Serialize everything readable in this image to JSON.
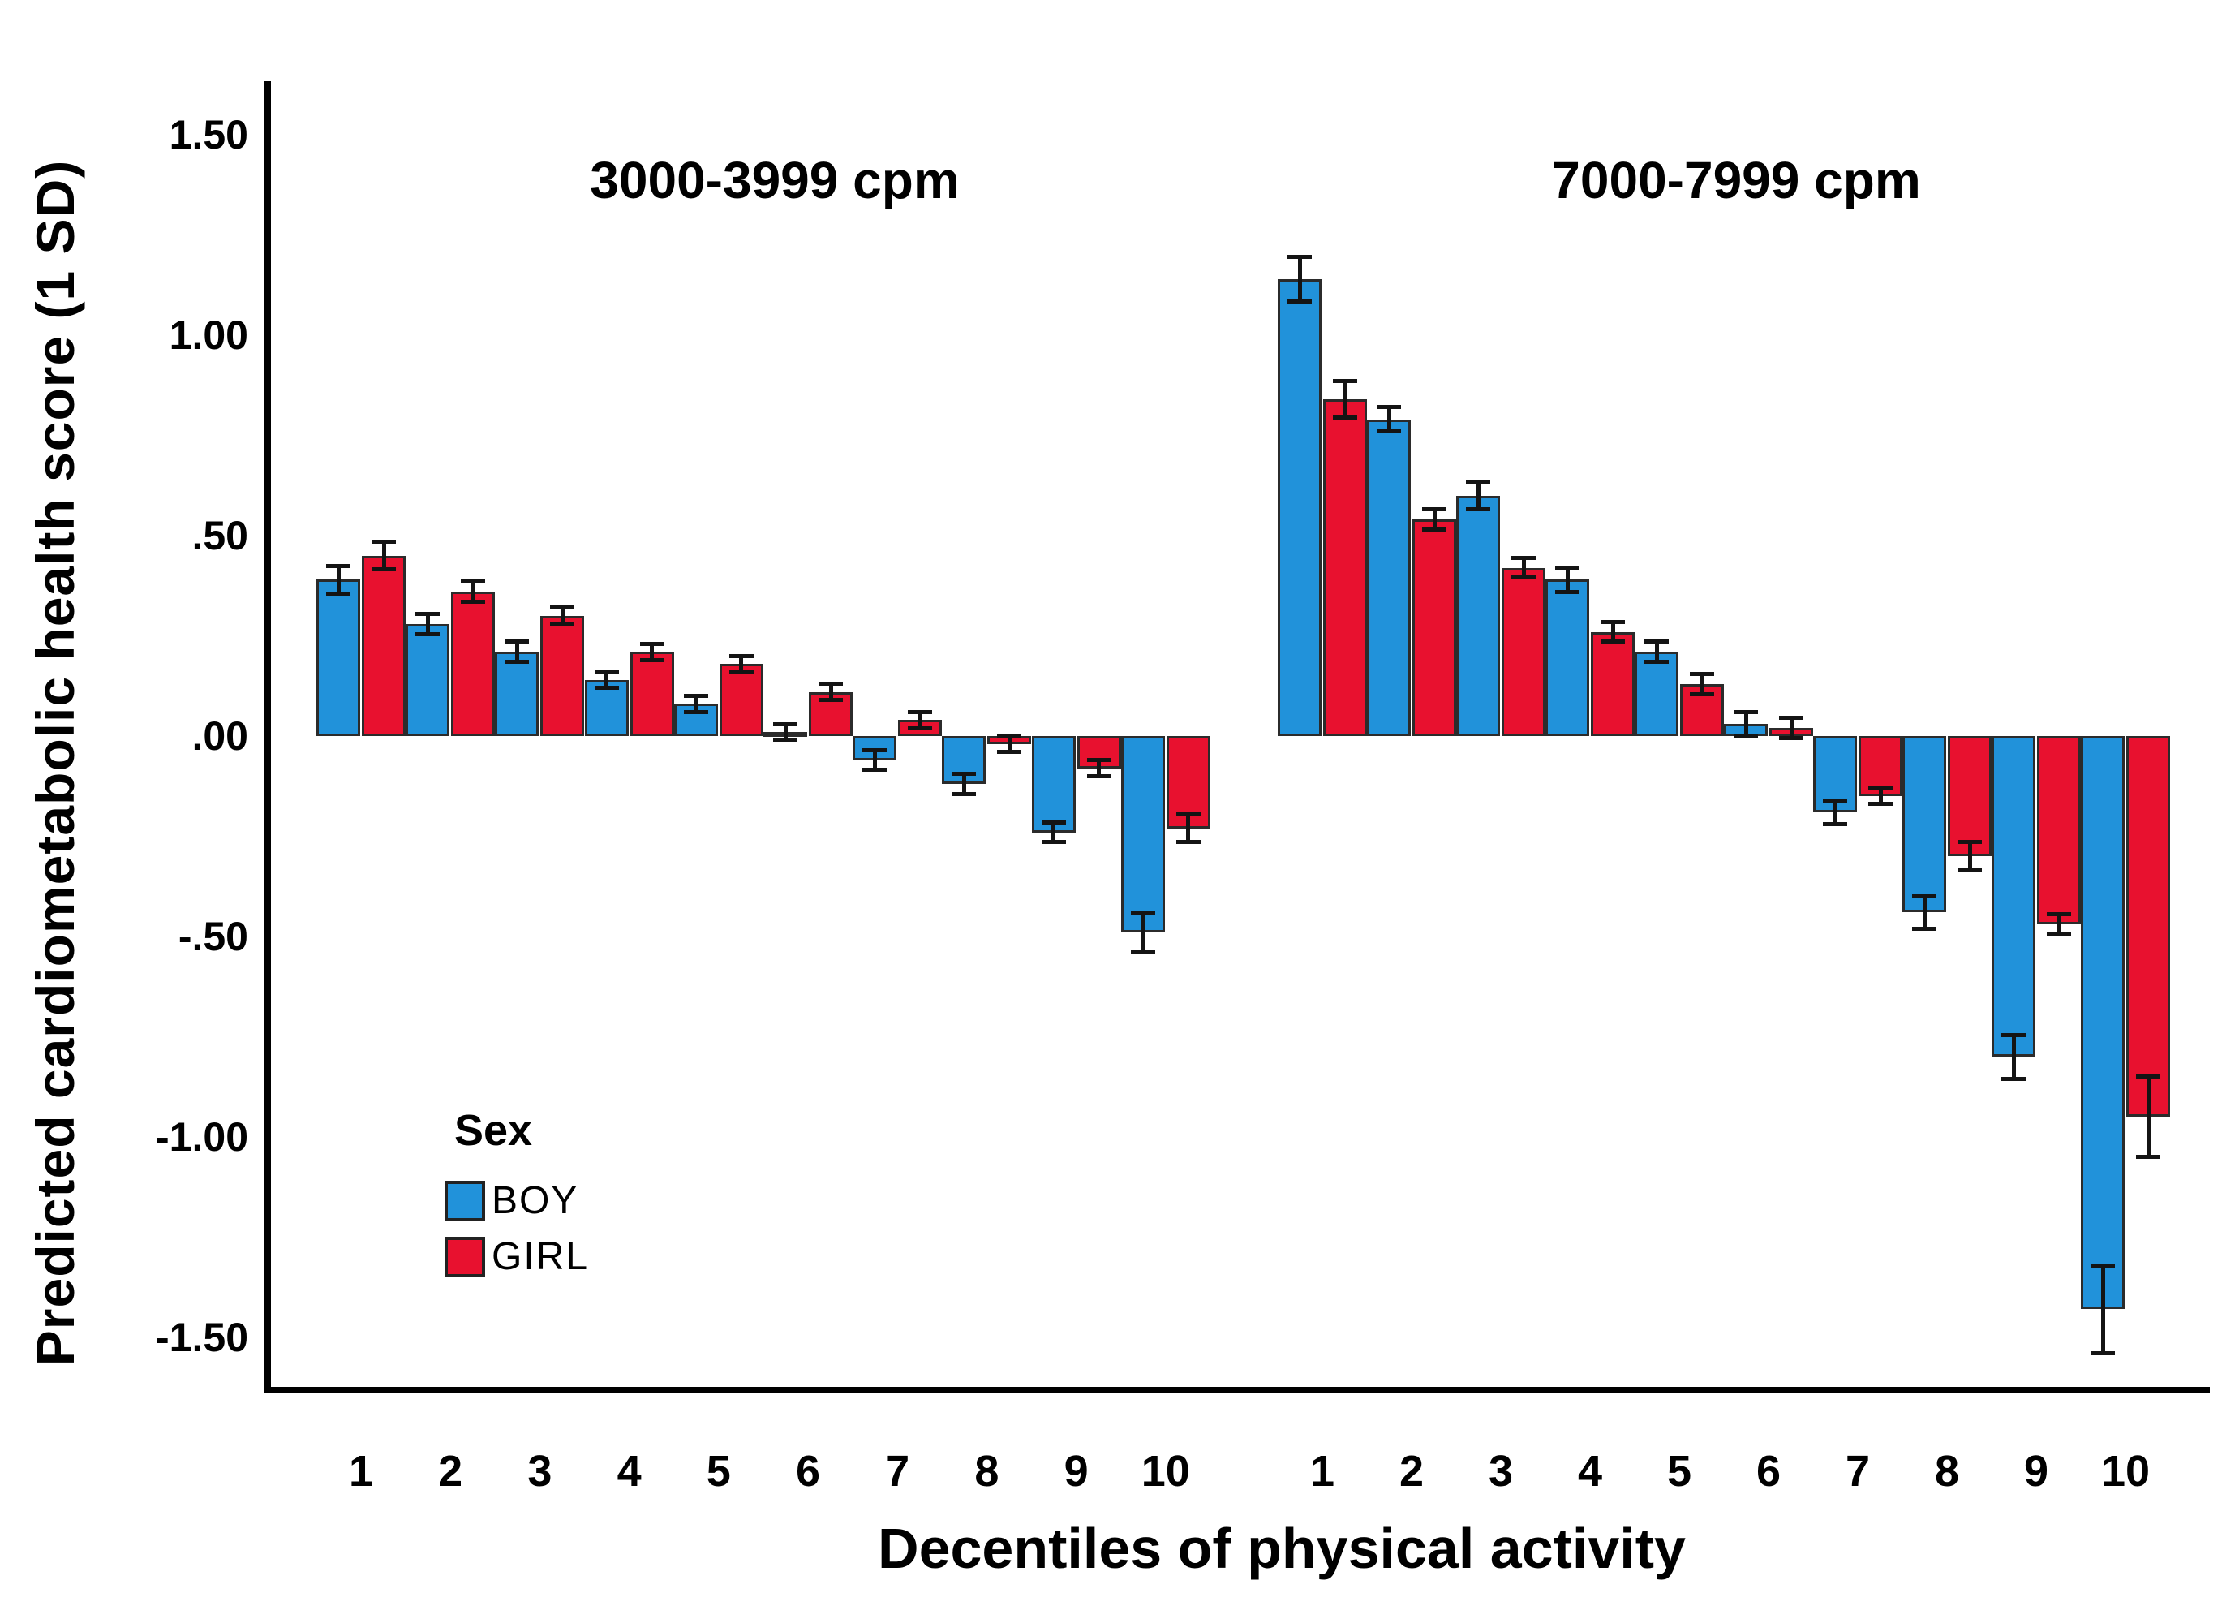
{
  "figure": {
    "y_axis": {
      "title": "Predicted cardiometabolic health score (1 SD)",
      "tick_labels": [
        "1.50",
        "1.00",
        ".50",
        ".00",
        "-.50",
        "-1.00",
        "-1.50"
      ],
      "tick_values": [
        1.5,
        1.0,
        0.5,
        0.0,
        -0.5,
        -1.0,
        -1.5
      ]
    },
    "x_axis": {
      "title": "Decentiles of physical activity"
    },
    "legend": {
      "title": "Sex",
      "items": [
        {
          "label": "BOY",
          "color": "#2192DA"
        },
        {
          "label": "GIRL",
          "color": "#E8112F"
        }
      ]
    }
  },
  "chart_data": {
    "type": "bar",
    "title": "",
    "xlabel": "Decentiles of physical activity",
    "ylabel": "Predicted cardiometabolic health score (1 SD)",
    "ylim": [
      -1.63,
      1.62
    ],
    "grid": false,
    "legend_position": "lower-left-inside",
    "error_bars": true,
    "panels": [
      {
        "label": "3000-3999 cpm",
        "categories": [
          "1",
          "2",
          "3",
          "4",
          "5",
          "6",
          "7",
          "8",
          "9",
          "10"
        ],
        "series": [
          {
            "name": "BOY",
            "color": "#2192DA",
            "values": [
              0.39,
              0.28,
              0.21,
              0.14,
              0.08,
              0.01,
              -0.06,
              -0.12,
              -0.24,
              -0.49
            ],
            "errors": [
              0.035,
              0.025,
              0.025,
              0.02,
              0.02,
              0.02,
              0.025,
              0.025,
              0.025,
              0.05
            ]
          },
          {
            "name": "GIRL",
            "color": "#E8112F",
            "values": [
              0.45,
              0.36,
              0.3,
              0.21,
              0.18,
              0.11,
              0.04,
              -0.02,
              -0.08,
              -0.23
            ],
            "errors": [
              0.035,
              0.025,
              0.02,
              0.02,
              0.02,
              0.02,
              0.02,
              0.02,
              0.02,
              0.035
            ]
          }
        ]
      },
      {
        "label": "7000-7999 cpm",
        "categories": [
          "1",
          "2",
          "3",
          "4",
          "5",
          "6",
          "7",
          "8",
          "9",
          "10"
        ],
        "series": [
          {
            "name": "BOY",
            "color": "#2192DA",
            "values": [
              1.14,
              0.79,
              0.6,
              0.39,
              0.21,
              0.03,
              -0.19,
              -0.44,
              -0.8,
              -1.43
            ],
            "errors": [
              0.055,
              0.03,
              0.035,
              0.03,
              0.025,
              0.03,
              0.03,
              0.04,
              0.055,
              0.11
            ]
          },
          {
            "name": "GIRL",
            "color": "#E8112F",
            "values": [
              0.84,
              0.54,
              0.42,
              0.26,
              0.13,
              0.02,
              -0.15,
              -0.3,
              -0.47,
              -0.95
            ],
            "errors": [
              0.045,
              0.025,
              0.025,
              0.025,
              0.025,
              0.025,
              0.02,
              0.035,
              0.025,
              0.1
            ]
          }
        ]
      }
    ]
  }
}
